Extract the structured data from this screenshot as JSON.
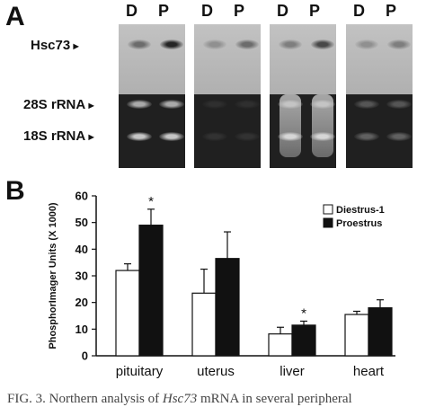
{
  "panel_a": {
    "label": "A",
    "lanes": [
      "D",
      "P"
    ],
    "row_labels": {
      "hsc73": "Hsc73",
      "rrna28s": "28S rRNA",
      "rrna18s": "18S rRNA"
    }
  },
  "panel_b": {
    "label": "B"
  },
  "chart_data": {
    "type": "bar",
    "categories": [
      "pituitary",
      "uterus",
      "liver",
      "heart"
    ],
    "series": [
      {
        "name": "Diestrus-1",
        "color": "#ffffff",
        "values": [
          32,
          23.5,
          8.2,
          15.5
        ],
        "errors": [
          2.5,
          9,
          2.5,
          1.2
        ]
      },
      {
        "name": "Proestrus",
        "color": "#111111",
        "values": [
          49,
          36.5,
          11.5,
          18
        ],
        "errors": [
          6,
          10,
          1.5,
          3
        ]
      }
    ],
    "significance": [
      {
        "category": "pituitary",
        "marker": "*"
      },
      {
        "category": "liver",
        "marker": "*"
      }
    ],
    "ylabel": "PhosphorImager Units (X 1000)",
    "xlabel": "",
    "ylim": [
      0,
      60
    ],
    "yticks": [
      0,
      10,
      20,
      30,
      40,
      50,
      60
    ],
    "legend_position": "top-right"
  },
  "caption": {
    "prefix": "FIG. 3.  Northern analysis of ",
    "gene": "Hsc73",
    "suffix": " mRNA in several peripheral"
  }
}
